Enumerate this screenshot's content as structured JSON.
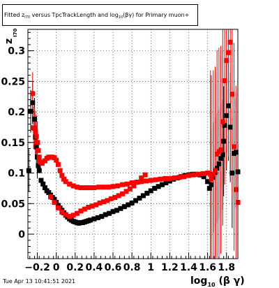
{
  "title": {
    "prefix": "Fitted  z",
    "sub1": "I70",
    "middle": " versus TpcTrackLength and log",
    "sub2": "10",
    "suffix": "(βγ) for Primary muon+"
  },
  "timestamp": "Tue Apr 13 10:41:51 2021",
  "colors": {
    "series_dark": "#000000",
    "series_red": "#ff0000",
    "axis": "#000000",
    "grid": "#000000"
  },
  "chart_data": {
    "type": "scatter",
    "title": "Fitted z_I70 versus TpcTrackLength and log10(βγ) for Primary muon+",
    "xlabel": "log10 (β γ)",
    "ylabel": "z I70",
    "xlim": [
      -0.3,
      1.92
    ],
    "ylim": [
      -0.04,
      0.335
    ],
    "x_ticks": [
      -0.2,
      0,
      0.2,
      0.4,
      0.6,
      0.8,
      1,
      1.2,
      1.4,
      1.6,
      1.8
    ],
    "x_tick_labels": [
      "−0.2",
      "0",
      "0.2",
      "0.4",
      "0.6",
      "0.8",
      "1",
      "1.2",
      "1.4",
      "1.6",
      "1.8"
    ],
    "y_ticks": [
      0,
      0.05,
      0.1,
      0.15,
      0.2,
      0.25,
      0.3
    ],
    "y_tick_labels": [
      "0",
      "0.05",
      "0.1",
      "0.15",
      "0.2",
      "0.25",
      "0.3"
    ],
    "grid": true,
    "series": [
      {
        "color": "#000000",
        "points": [
          [
            -0.29,
            0.104
          ],
          [
            -0.27,
            0.201
          ],
          [
            -0.25,
            0.215
          ],
          [
            -0.23,
            0.188
          ],
          [
            -0.22,
            0.159
          ],
          [
            -0.21,
            0.143
          ],
          [
            -0.2,
            0.126
          ],
          [
            -0.19,
            0.112
          ],
          [
            -0.18,
            0.104
          ],
          [
            -0.16,
            0.088
          ],
          [
            -0.14,
            0.082
          ],
          [
            -0.12,
            0.076
          ],
          [
            -0.1,
            0.071
          ],
          [
            -0.08,
            0.068
          ],
          [
            -0.06,
            0.064
          ],
          [
            -0.04,
            0.06
          ],
          [
            -0.02,
            0.057
          ],
          [
            0,
            0.052
          ],
          [
            0.02,
            0.047
          ],
          [
            0.04,
            0.043
          ],
          [
            0.06,
            0.039
          ],
          [
            0.08,
            0.035
          ],
          [
            0.1,
            0.031
          ],
          [
            0.12,
            0.028
          ],
          [
            0.14,
            0.025
          ],
          [
            0.16,
            0.023
          ],
          [
            0.18,
            0.021
          ],
          [
            0.2,
            0.02
          ],
          [
            0.22,
            0.019
          ],
          [
            0.24,
            0.018
          ],
          [
            0.26,
            0.019
          ],
          [
            0.28,
            0.019
          ],
          [
            0.3,
            0.02
          ],
          [
            0.32,
            0.021
          ],
          [
            0.34,
            0.022
          ],
          [
            0.36,
            0.023
          ],
          [
            0.4,
            0.025
          ],
          [
            0.44,
            0.027
          ],
          [
            0.48,
            0.029
          ],
          [
            0.52,
            0.032
          ],
          [
            0.56,
            0.034
          ],
          [
            0.6,
            0.037
          ],
          [
            0.64,
            0.039
          ],
          [
            0.68,
            0.042
          ],
          [
            0.72,
            0.045
          ],
          [
            0.76,
            0.048
          ],
          [
            0.8,
            0.051
          ],
          [
            0.84,
            0.055
          ],
          [
            0.88,
            0.059
          ],
          [
            0.92,
            0.063
          ],
          [
            0.96,
            0.067
          ],
          [
            1,
            0.071
          ],
          [
            1.04,
            0.075
          ],
          [
            1.08,
            0.078
          ],
          [
            1.12,
            0.081
          ],
          [
            1.16,
            0.084
          ],
          [
            1.2,
            0.087
          ],
          [
            1.24,
            0.09
          ],
          [
            1.28,
            0.092
          ],
          [
            1.32,
            0.094
          ],
          [
            1.36,
            0.096
          ],
          [
            1.4,
            0.097
          ],
          [
            1.44,
            0.098
          ],
          [
            1.48,
            0.098
          ],
          [
            1.52,
            0.097
          ],
          [
            1.56,
            0.094
          ],
          [
            1.6,
            0.086
          ],
          [
            1.62,
            0.075
          ],
          [
            1.64,
            0.081
          ],
          [
            1.66,
            0.093
          ],
          [
            1.68,
            0.101
          ],
          [
            1.7,
            0.108
          ],
          [
            1.72,
            0.115
          ],
          [
            1.74,
            0.124
          ],
          [
            1.76,
            0.13
          ],
          [
            1.77,
            0.152
          ],
          [
            1.78,
            0.178
          ],
          [
            1.8,
            0.194
          ],
          [
            1.82,
            0.21
          ],
          [
            1.84,
            0.175
          ],
          [
            1.86,
            0.1
          ],
          [
            1.88,
            0.132
          ],
          [
            1.9,
            0.134
          ],
          [
            1.92,
            0.102
          ]
        ]
      },
      {
        "color": "#ff0000",
        "points": [
          [
            -0.25,
            0.23
          ],
          [
            -0.24,
            0.174
          ],
          [
            -0.23,
            0.173
          ],
          [
            -0.22,
            0.167
          ],
          [
            -0.21,
            0.16
          ],
          [
            -0.2,
            0.15
          ],
          [
            -0.19,
            0.137
          ],
          [
            -0.18,
            0.126
          ],
          [
            -0.17,
            0.118
          ],
          [
            -0.15,
            0.116
          ],
          [
            -0.12,
            0.12
          ],
          [
            -0.1,
            0.124
          ],
          [
            -0.08,
            0.126
          ],
          [
            -0.06,
            0.126
          ],
          [
            -0.04,
            0.126
          ],
          [
            -0.02,
            0.125
          ],
          [
            0,
            0.121
          ],
          [
            0.02,
            0.114
          ],
          [
            0.04,
            0.104
          ],
          [
            0.06,
            0.096
          ],
          [
            0.08,
            0.09
          ],
          [
            0.1,
            0.086
          ],
          [
            0.14,
            0.082
          ],
          [
            0.18,
            0.079
          ],
          [
            0.22,
            0.077
          ],
          [
            0.26,
            0.076
          ],
          [
            0.3,
            0.076
          ],
          [
            0.35,
            0.076
          ],
          [
            0.4,
            0.076
          ],
          [
            0.45,
            0.077
          ],
          [
            0.5,
            0.077
          ],
          [
            0.55,
            0.077
          ],
          [
            0.6,
            0.078
          ],
          [
            0.65,
            0.079
          ],
          [
            0.7,
            0.081
          ],
          [
            0.75,
            0.082
          ],
          [
            0.8,
            0.084
          ],
          [
            0.85,
            0.085
          ],
          [
            0.9,
            0.086
          ],
          [
            0.95,
            0.087
          ],
          [
            1,
            0.088
          ],
          [
            1.05,
            0.089
          ],
          [
            1.1,
            0.09
          ],
          [
            1.15,
            0.091
          ],
          [
            1.2,
            0.091
          ],
          [
            1.25,
            0.092
          ],
          [
            1.3,
            0.093
          ],
          [
            1.35,
            0.094
          ],
          [
            1.4,
            0.096
          ],
          [
            1.45,
            0.097
          ],
          [
            1.5,
            0.098
          ],
          [
            1.55,
            0.099
          ],
          [
            1.6,
            0.1
          ],
          [
            1.63,
            0.098
          ],
          [
            0.94,
            0.097
          ],
          [
            0.9,
            0.092
          ],
          [
            0.86,
            0.085
          ],
          [
            0.82,
            0.079
          ],
          [
            0.78,
            0.074
          ],
          [
            0.74,
            0.07
          ],
          [
            0.7,
            0.066
          ],
          [
            0.66,
            0.063
          ],
          [
            0.62,
            0.06
          ],
          [
            0.58,
            0.058
          ],
          [
            0.54,
            0.055
          ],
          [
            0.5,
            0.053
          ],
          [
            0.46,
            0.051
          ],
          [
            0.42,
            0.048
          ],
          [
            0.38,
            0.046
          ],
          [
            0.34,
            0.044
          ],
          [
            0.3,
            0.041
          ],
          [
            0.26,
            0.038
          ],
          [
            0.22,
            0.034
          ],
          [
            0.18,
            0.031
          ],
          [
            0.14,
            0.029
          ],
          [
            0.1,
            0.032
          ],
          [
            0.06,
            0.036
          ],
          [
            0.02,
            0.043
          ],
          [
            -0.02,
            0.052
          ],
          [
            -0.06,
            0.061
          ],
          [
            1.64,
            0.09
          ],
          [
            1.66,
            0.098
          ],
          [
            1.68,
            0.104
          ],
          [
            1.7,
            0.131
          ],
          [
            1.72,
            0.135
          ],
          [
            1.74,
            0.138
          ],
          [
            1.76,
            0.184
          ],
          [
            1.78,
            0.251
          ],
          [
            1.8,
            0.284
          ],
          [
            1.82,
            0.297
          ],
          [
            1.84,
            0.314
          ],
          [
            1.86,
            0.229
          ],
          [
            1.88,
            0.143
          ],
          [
            1.9,
            0.073
          ],
          [
            1.92,
            0.052
          ]
        ]
      }
    ]
  }
}
